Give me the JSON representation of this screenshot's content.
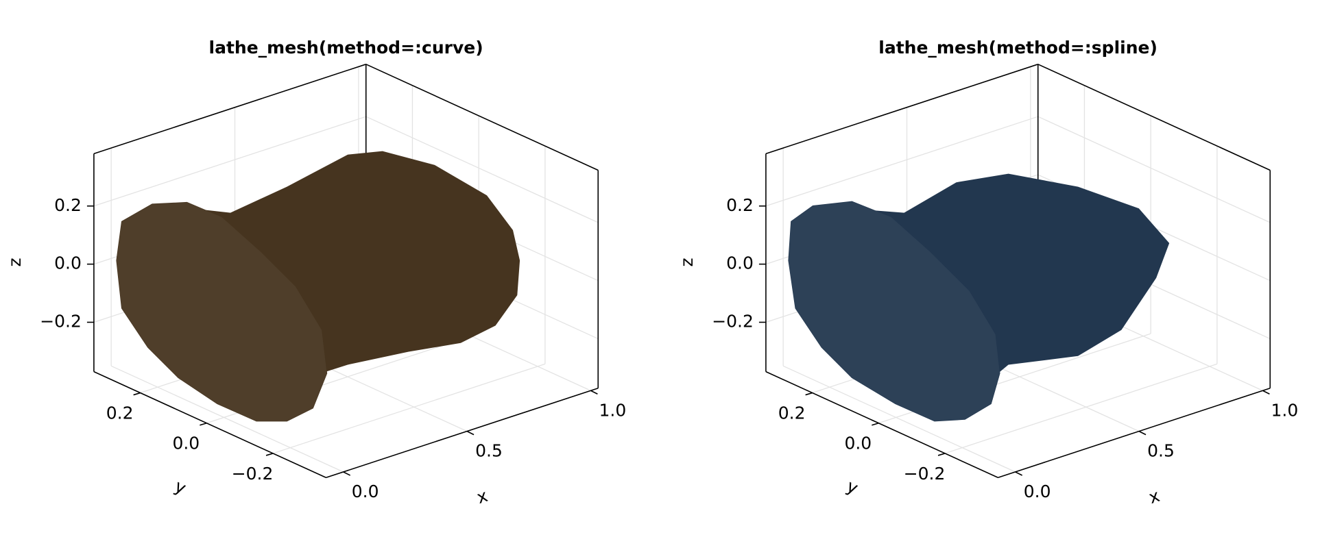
{
  "chart_data": [
    {
      "type": "mesh3d",
      "title": "lathe_mesh(method=:curve)",
      "xlabel": "x",
      "ylabel": "y",
      "zlabel": "z",
      "color": "#46341f",
      "xlim": [
        -0.07,
        1.03
      ],
      "ylim": [
        -0.36,
        0.34
      ],
      "zlim": [
        -0.37,
        0.38
      ],
      "xticks": [
        {
          "value": 0,
          "label": "0.0"
        },
        {
          "value": 0.5,
          "label": "0.5"
        },
        {
          "value": 1,
          "label": "1.0"
        }
      ],
      "yticks": [
        {
          "value": -0.2,
          "label": "−0.2"
        },
        {
          "value": 0,
          "label": "0.0"
        },
        {
          "value": 0.2,
          "label": "0.2"
        }
      ],
      "zticks": [
        {
          "value": -0.2,
          "label": "−0.2"
        },
        {
          "value": 0,
          "label": "0.0"
        },
        {
          "value": 0.2,
          "label": "0.2"
        }
      ],
      "grid": true
    },
    {
      "type": "mesh3d",
      "title": "lathe_mesh(method=:spline)",
      "xlabel": "x",
      "ylabel": "y",
      "zlabel": "z",
      "color": "#22374f",
      "xlim": [
        -0.07,
        1.03
      ],
      "ylim": [
        -0.36,
        0.34
      ],
      "zlim": [
        -0.37,
        0.38
      ],
      "xticks": [
        {
          "value": 0,
          "label": "0.0"
        },
        {
          "value": 0.5,
          "label": "0.5"
        },
        {
          "value": 1,
          "label": "1.0"
        }
      ],
      "yticks": [
        {
          "value": -0.2,
          "label": "−0.2"
        },
        {
          "value": 0,
          "label": "0.0"
        },
        {
          "value": 0.2,
          "label": "0.2"
        }
      ],
      "zticks": [
        {
          "value": -0.2,
          "label": "−0.2"
        },
        {
          "value": 0,
          "label": "0.0"
        },
        {
          "value": 0.2,
          "label": "0.2"
        }
      ],
      "grid": true
    }
  ]
}
